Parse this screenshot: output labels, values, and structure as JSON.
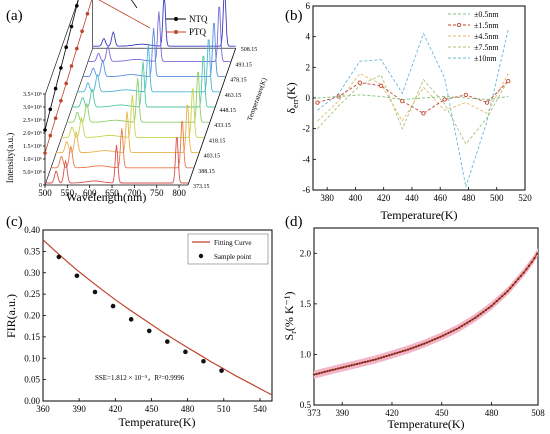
{
  "chart_data": [
    {
      "type": "line",
      "panel_label": "(a)",
      "xlabel": "Wavelength(nm)",
      "ylabel": "Intensity(a.u.)",
      "zlabel": "Temperature(K)",
      "x_ticks": [
        "500",
        "550",
        "600",
        "650",
        "700",
        "750",
        "800"
      ],
      "y_ticks": [
        "0",
        "5.0×10⁵",
        "1.0×10⁶",
        "1.5×10⁶",
        "2.0×10⁶",
        "2.5×10⁶",
        "3.0×10⁶",
        "3.5×10⁶"
      ],
      "temperatures": [
        "373.15",
        "388.15",
        "403.15",
        "418.15",
        "433.15",
        "448.15",
        "463.15",
        "478.15",
        "493.15",
        "508.15"
      ],
      "legend": [
        "NTQ",
        "PTQ"
      ],
      "legend_position": "top-center",
      "series_colors": [
        "#d94f4f",
        "#e8764a",
        "#e9b24a",
        "#c9d44a",
        "#8fd06a",
        "#52c7a6",
        "#4cb4d8",
        "#5a8ee0",
        "#7a6ad8",
        "#3a3ac0"
      ],
      "peaks_nm": [
        525,
        545,
        660,
        795
      ]
    },
    {
      "type": "line",
      "panel_label": "(b)",
      "xlabel": "Temperature(K)",
      "ylabel": "δ",
      "ylabel_sub": "err",
      "ylabel_unit": "(K)",
      "xlim": [
        370,
        520
      ],
      "ylim": [
        -6,
        6
      ],
      "x_ticks": [
        "380",
        "400",
        "420",
        "440",
        "460",
        "480",
        "500",
        "520"
      ],
      "y_ticks": [
        "-6",
        "-4",
        "-2",
        "0",
        "2",
        "4",
        "6"
      ],
      "x": [
        373.15,
        388.15,
        403.15,
        418.15,
        433.15,
        448.15,
        463.15,
        478.15,
        493.15,
        508.15
      ],
      "series": [
        {
          "name": "±0.5nm",
          "color": "#7fbf7f",
          "values": [
            0,
            0.1,
            0.2,
            0.1,
            -0.1,
            0,
            0.1,
            0,
            -0.1,
            0.1
          ]
        },
        {
          "name": "±1.5nm",
          "color": "#c0442c",
          "values": [
            -0.3,
            0.1,
            1.0,
            0.8,
            -0.2,
            -1.0,
            -0.1,
            0.2,
            -0.3,
            1.1
          ]
        },
        {
          "name": "±4.5nm",
          "color": "#e6b86a",
          "values": [
            -1.5,
            -0.2,
            1.6,
            0.9,
            -1.5,
            0.7,
            -0.8,
            -0.3,
            -1.0,
            1.6
          ]
        },
        {
          "name": "±7.5nm",
          "color": "#a7c37a",
          "values": [
            -2.0,
            -0.5,
            0.8,
            1.5,
            -2.0,
            1.2,
            -0.4,
            -3.0,
            -1.3,
            1.2
          ]
        },
        {
          "name": "±10nm",
          "color": "#6ab7d6",
          "values": [
            -0.8,
            0.3,
            2.4,
            2.5,
            0.3,
            4.2,
            1.3,
            -5.8,
            -1.5,
            4.5
          ]
        }
      ],
      "legend_position": "top-right"
    },
    {
      "type": "line",
      "panel_label": "(c)",
      "xlabel": "Temperature(K)",
      "ylabel": "FIR(a.u.)",
      "xlim": [
        360,
        550
      ],
      "ylim": [
        0,
        0.4
      ],
      "x_ticks": [
        "360",
        "390",
        "420",
        "450",
        "480",
        "510",
        "540"
      ],
      "y_ticks": [
        "0.00",
        "0.05",
        "0.10",
        "0.15",
        "0.20",
        "0.25",
        "0.30",
        "0.35",
        "0.40"
      ],
      "curve_color": "#c0442c",
      "series": [
        {
          "name": "Fitting Curve",
          "x": [
            360,
            370,
            380,
            390,
            400,
            410,
            420,
            430,
            440,
            450,
            460,
            470,
            480,
            490,
            500,
            510,
            520,
            530,
            540,
            550
          ],
          "values": [
            0.377,
            0.351,
            0.326,
            0.302,
            0.28,
            0.258,
            0.237,
            0.217,
            0.198,
            0.179,
            0.16,
            0.142,
            0.125,
            0.108,
            0.091,
            0.075,
            0.059,
            0.044,
            0.029,
            0.014
          ]
        },
        {
          "name": "Sample point",
          "x": [
            373.15,
            388.15,
            403.15,
            418.15,
            433.15,
            448.15,
            463.15,
            478.15,
            493.15,
            508.15
          ],
          "values": [
            0.337,
            0.293,
            0.255,
            0.222,
            0.191,
            0.164,
            0.139,
            0.115,
            0.093,
            0.071
          ]
        }
      ],
      "annotation": "SSE=1.812 × 10⁻⁵，R²=0.9996",
      "legend_position": "top-right"
    },
    {
      "type": "line",
      "panel_label": "(d)",
      "xlabel": "Temperature(K)",
      "ylabel": "S",
      "ylabel_sub": "r",
      "ylabel_unit": "(% K⁻¹)",
      "xlim": [
        373,
        508
      ],
      "ylim": [
        0.5,
        2.25
      ],
      "x_ticks": [
        "373",
        "390",
        "420",
        "450",
        "480",
        "508"
      ],
      "y_ticks": [
        "0.5",
        "1.0",
        "1.5",
        "2.0"
      ],
      "curve_color": "#c0442c",
      "band_color": "#f2b6c8",
      "x": [
        373,
        380,
        390,
        400,
        410,
        420,
        430,
        440,
        450,
        460,
        470,
        480,
        490,
        500,
        505,
        508
      ],
      "values": [
        0.8,
        0.83,
        0.87,
        0.91,
        0.95,
        1.0,
        1.05,
        1.11,
        1.18,
        1.26,
        1.36,
        1.48,
        1.63,
        1.82,
        1.93,
        2.01
      ]
    }
  ]
}
